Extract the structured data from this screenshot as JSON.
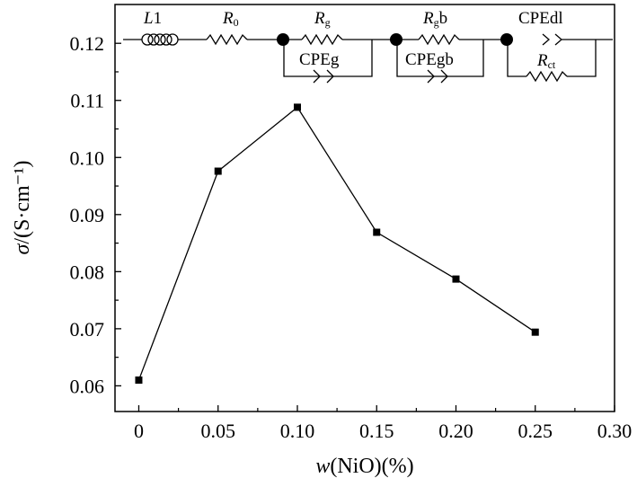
{
  "chart_data": {
    "type": "line",
    "xlabel": "w(NiO)(%)",
    "ylabel": "σ/(S·cm⁻¹)",
    "x": [
      0,
      0.05,
      0.1,
      0.15,
      0.2,
      0.25
    ],
    "y": [
      0.061,
      0.0976,
      0.1088,
      0.0869,
      0.0787,
      0.0694
    ],
    "xlim": [
      -0.015,
      0.3
    ],
    "ylim": [
      0.0555,
      0.1268
    ],
    "xticks": [
      0,
      0.05,
      0.1,
      0.15,
      0.2,
      0.25,
      0.3
    ],
    "xtick_labels": [
      "0",
      "0.05",
      "0.10",
      "0.15",
      "0.20",
      "0.25",
      "0.30"
    ],
    "yticks": [
      0.06,
      0.07,
      0.08,
      0.09,
      0.1,
      0.11,
      0.12
    ],
    "ytick_labels": [
      "0.06",
      "0.07",
      "0.08",
      "0.09",
      "0.10",
      "0.11",
      "0.12"
    ],
    "grid": false,
    "legend": "none",
    "marker": "square",
    "line_color": "#000000",
    "inset_circuit": {
      "L1": {
        "letter": "L",
        "number": "1"
      },
      "R0": {
        "letter": "R",
        "sub": "0"
      },
      "Rg": {
        "letter": "R",
        "sub": "g"
      },
      "CPEg": "CPEg",
      "Rgb": {
        "letter": "R",
        "sub": "g",
        "suffix": "b"
      },
      "CPEgb": "CPEgb",
      "CPEdl": "CPEdl",
      "Rct": {
        "letter": "R",
        "sub": "ct"
      }
    }
  }
}
